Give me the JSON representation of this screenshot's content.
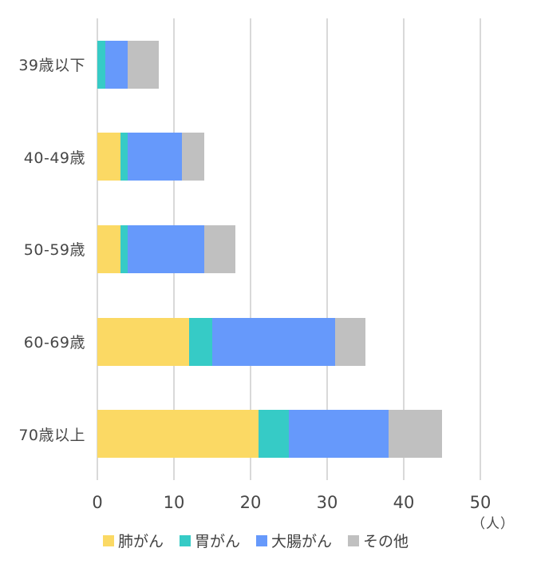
{
  "chart_data": {
    "type": "bar",
    "orientation": "horizontal",
    "stacked": true,
    "title": "",
    "xlabel": "",
    "ylabel": "",
    "x_unit_label": "（人）",
    "xlim": [
      0,
      50
    ],
    "x_ticks": [
      0,
      10,
      20,
      30,
      40,
      50
    ],
    "grid": true,
    "legend_position": "bottom",
    "categories": [
      "39歳以下",
      "40-49歳",
      "50-59歳",
      "60-69歳",
      "70歳以上"
    ],
    "series": [
      {
        "name": "肺がん",
        "color": "#fbd964",
        "values": [
          0,
          3,
          3,
          12,
          21
        ]
      },
      {
        "name": "胃がん",
        "color": "#36cbc6",
        "values": [
          1,
          1,
          1,
          3,
          4
        ]
      },
      {
        "name": "大腸がん",
        "color": "#6699fb",
        "values": [
          3,
          7,
          10,
          16,
          13
        ]
      },
      {
        "name": "その他",
        "color": "#c0c0c0",
        "values": [
          4,
          3,
          4,
          4,
          7
        ]
      }
    ],
    "totals": [
      8,
      14,
      18,
      35,
      45
    ],
    "colors": {
      "gridline": "#d9d9d9",
      "text": "#474747",
      "background": "#ffffff"
    }
  }
}
